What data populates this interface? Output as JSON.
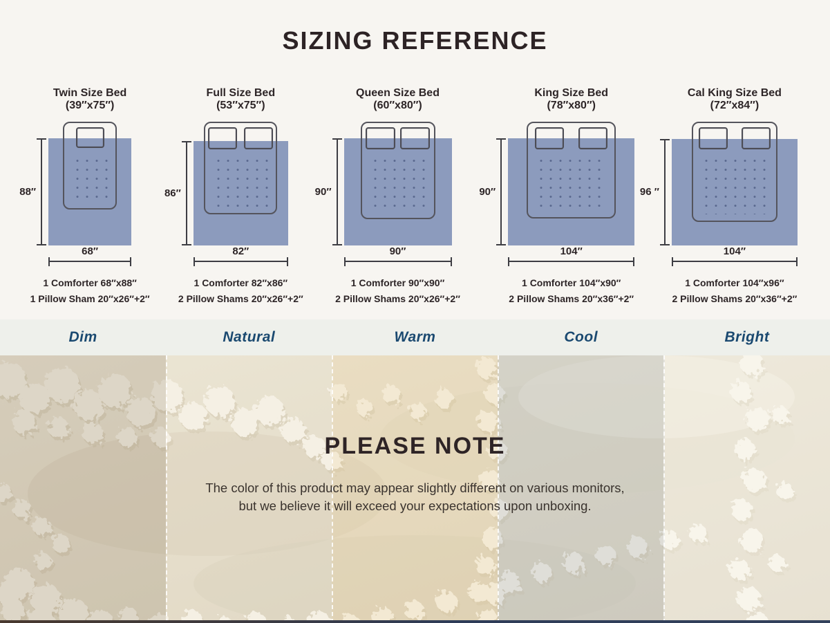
{
  "colors": {
    "comforter_blue": "#8c9bbd",
    "outline_gray": "#54545c",
    "dimension_line": "#3d3d43",
    "heading_dark": "#2d2527",
    "lighting_label_blue": "#1a4970",
    "page_background": "#f7f5f1",
    "strip_background": "#eef0eb",
    "fabric_base": "#e4dcc8"
  },
  "sizing": {
    "title": "SIZING REFERENCE",
    "beds": [
      {
        "name": "Twin Size Bed",
        "dimensions": "(39″x75″)",
        "height_label": "88″",
        "width_label": "68″",
        "pillow_count": 1,
        "specs": [
          "1  Comforter 68″x88″",
          "1 Pillow Sham 20″x26″+2″"
        ]
      },
      {
        "name": "Full Size Bed",
        "dimensions": "(53″x75″)",
        "height_label": "86″",
        "width_label": "82″",
        "pillow_count": 2,
        "specs": [
          "1 Comforter 82″x86″",
          "2 Pillow Shams 20″x26″+2″"
        ]
      },
      {
        "name": "Queen Size Bed",
        "dimensions": "(60″x80″)",
        "height_label": "90″",
        "width_label": "90″",
        "pillow_count": 2,
        "specs": [
          "1 Comforter 90″x90″",
          "2 Pillow Shams 20″x26″+2″"
        ]
      },
      {
        "name": "King Size Bed",
        "dimensions": "(78″x80″)",
        "height_label": "90″",
        "width_label": "104″",
        "pillow_count": 2,
        "specs": [
          "1 Comforter 104″x90″",
          "2 Pillow Shams 20″x36″+2″"
        ]
      },
      {
        "name": "Cal King Size Bed",
        "dimensions": "(72″x84″)",
        "height_label": "96 ″",
        "width_label": "104″",
        "pillow_count": 2,
        "specs": [
          "1 Comforter 104″x96″",
          "2 Pillow Shams 20″x36″+2″"
        ]
      }
    ]
  },
  "lighting": {
    "labels": [
      "Dim",
      "Natural",
      "Warm",
      "Cool",
      "Bright"
    ]
  },
  "note": {
    "title": "PLEASE NOTE",
    "line1": "The color of this product may appear slightly different on various monitors,",
    "line2": "but we believe it will exceed your expectations upon unboxing."
  }
}
